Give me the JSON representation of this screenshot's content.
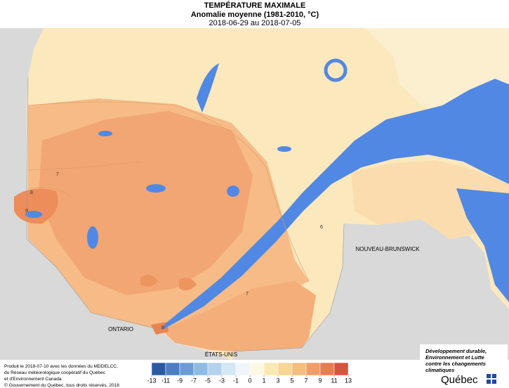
{
  "header": {
    "title": "TEMPÉRATURE MAXIMALE",
    "subtitle": "Anomalie moyenne (1981-2010, °C)",
    "period": "2018-06-29 au 2018-07-05"
  },
  "map": {
    "regions": [
      "ONTARIO",
      "NOUVEAU-BRUNSWICK",
      "ÉTATS-UNIS"
    ],
    "contour_labels": [
      7,
      8,
      9,
      6,
      7,
      8
    ]
  },
  "legend": {
    "ticks": [
      -13,
      -11,
      -9,
      -7,
      -5,
      -3,
      -1,
      0,
      1,
      3,
      5,
      7,
      9,
      11,
      13
    ],
    "colors": [
      "#2c5aa0",
      "#4a7fc4",
      "#6a9dd6",
      "#8fbce4",
      "#b3d3ee",
      "#d3e7f4",
      "#eef6f9",
      "#fcf8e4",
      "#fbe9b4",
      "#f9d596",
      "#f6bd7e",
      "#f19e66",
      "#e87d50",
      "#d8533c"
    ]
  },
  "credits": [
    "Produit le 2018-07-10 avec les données du MDDELCC,",
    "du Réseau météorologique coopératif du Québec",
    "et d'Environnement Canada.",
    "© Gouvernement du Québec, tous droits réservés, 2018"
  ],
  "logo": {
    "ministry": [
      "Développement durable,",
      "Environnement et Lutte",
      "contre les changements",
      "climatiques"
    ],
    "name": "Québec"
  }
}
